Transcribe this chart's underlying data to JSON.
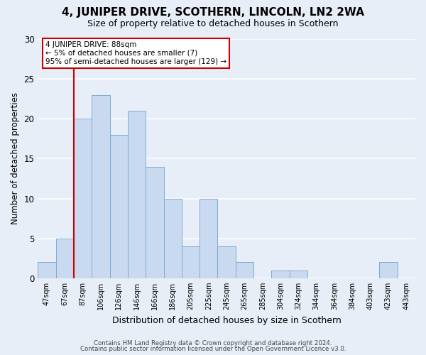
{
  "title": "4, JUNIPER DRIVE, SCOTHERN, LINCOLN, LN2 2WA",
  "subtitle": "Size of property relative to detached houses in Scothern",
  "xlabel": "Distribution of detached houses by size in Scothern",
  "ylabel": "Number of detached properties",
  "bar_labels": [
    "47sqm",
    "67sqm",
    "87sqm",
    "106sqm",
    "126sqm",
    "146sqm",
    "166sqm",
    "186sqm",
    "205sqm",
    "225sqm",
    "245sqm",
    "265sqm",
    "285sqm",
    "304sqm",
    "324sqm",
    "344sqm",
    "364sqm",
    "384sqm",
    "403sqm",
    "423sqm",
    "443sqm"
  ],
  "bar_values": [
    2,
    5,
    20,
    23,
    18,
    21,
    14,
    10,
    4,
    10,
    4,
    2,
    0,
    1,
    1,
    0,
    0,
    0,
    0,
    2,
    0
  ],
  "bar_color": "#c9d9ef",
  "bar_edge_color": "#7aadd4",
  "marker_line_index": 2,
  "marker_line_color": "#cc0000",
  "ylim": [
    0,
    30
  ],
  "yticks": [
    0,
    5,
    10,
    15,
    20,
    25,
    30
  ],
  "annotation_title": "4 JUNIPER DRIVE: 88sqm",
  "annotation_line1": "← 5% of detached houses are smaller (7)",
  "annotation_line2": "95% of semi-detached houses are larger (129) →",
  "annotation_box_color": "#cc0000",
  "footer_line1": "Contains HM Land Registry data © Crown copyright and database right 2024.",
  "footer_line2": "Contains public sector information licensed under the Open Government Licence v3.0.",
  "background_color": "#e8eef8",
  "plot_bg_color": "#e8eef8",
  "grid_color": "#ffffff",
  "title_fontsize": 11,
  "subtitle_fontsize": 9,
  "annotation_fontsize": 7.5
}
